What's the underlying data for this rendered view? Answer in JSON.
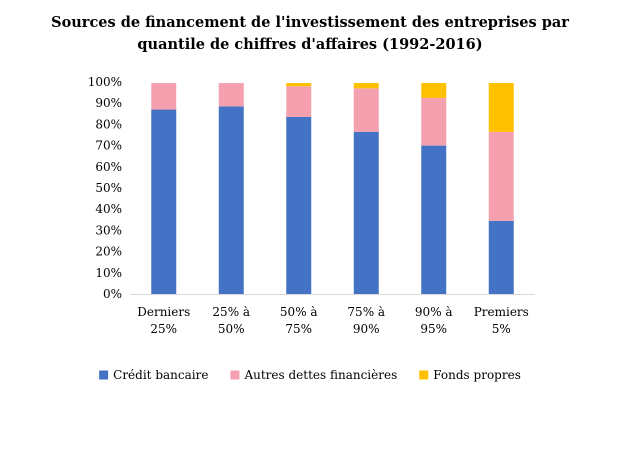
{
  "chart_data": {
    "type": "bar",
    "stacked": true,
    "title_lines": [
      "Sources de financement de l'investissement des entreprises par",
      "quantile de chiffres d'affaires (1992-2016)"
    ],
    "xlabel": "",
    "ylabel": "",
    "ylim": [
      0,
      100
    ],
    "yticks": [
      "0%",
      "10%",
      "20%",
      "30%",
      "40%",
      "50%",
      "60%",
      "70%",
      "80%",
      "90%",
      "100%"
    ],
    "grid": false,
    "legend_position": "bottom",
    "categories": [
      [
        "Derniers",
        "25%"
      ],
      [
        "25% à",
        "50%"
      ],
      [
        "50% à",
        "75%"
      ],
      [
        "75% à",
        "90%"
      ],
      [
        "90% à",
        "95%"
      ],
      [
        "Premiers",
        "5%"
      ]
    ],
    "series": [
      {
        "name": "Crédit bancaire",
        "color": "#4472C4",
        "values": [
          87,
          88.5,
          83.5,
          76.5,
          70,
          34.5
        ]
      },
      {
        "name": "Autres dettes financières",
        "color": "#F4A0AE",
        "values": [
          12.5,
          11,
          14.5,
          20.5,
          22.5,
          42
        ]
      },
      {
        "name": "Fonds propres",
        "color": "#FFC000",
        "values": [
          0,
          0,
          1.5,
          2.5,
          7,
          23
        ]
      }
    ]
  }
}
